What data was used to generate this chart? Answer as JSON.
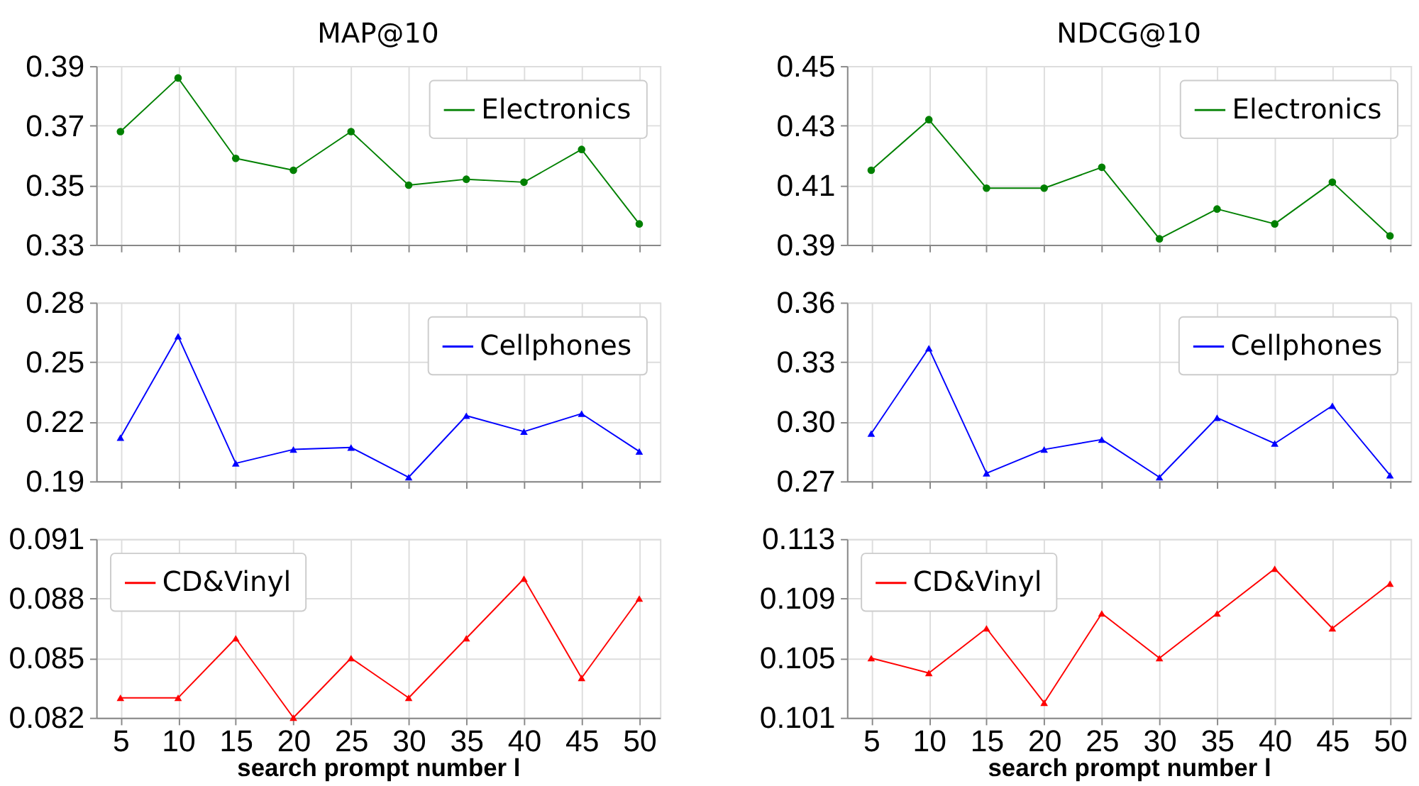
{
  "chart_data": [
    {
      "type": "line",
      "title": "MAP@10",
      "x": [
        5,
        10,
        15,
        20,
        25,
        30,
        35,
        40,
        45,
        50
      ],
      "xlim": [
        2.9,
        51.8
      ],
      "xticks": [
        5,
        10,
        15,
        20,
        25,
        30,
        35,
        40,
        45,
        50
      ],
      "ylim": [
        0.33,
        0.39
      ],
      "yticks": [
        0.33,
        0.35,
        0.37,
        0.39
      ],
      "grid": true,
      "legend": "top right",
      "marker": "circle",
      "tick_labels": "y",
      "series": [
        {
          "name": "Electronics",
          "color": "#008000",
          "values": [
            0.368,
            0.386,
            0.359,
            0.355,
            0.368,
            0.35,
            0.352,
            0.351,
            0.362,
            0.337
          ]
        }
      ]
    },
    {
      "type": "line",
      "title": "NDCG@10",
      "x": [
        5,
        10,
        15,
        20,
        25,
        30,
        35,
        40,
        45,
        50
      ],
      "xlim": [
        2.9,
        51.8
      ],
      "xticks": [
        5,
        10,
        15,
        20,
        25,
        30,
        35,
        40,
        45,
        50
      ],
      "ylim": [
        0.39,
        0.45
      ],
      "yticks": [
        0.39,
        0.41,
        0.43,
        0.45
      ],
      "grid": true,
      "legend": "top right",
      "marker": "circle",
      "tick_labels": "y",
      "series": [
        {
          "name": "Electronics",
          "color": "#008000",
          "values": [
            0.415,
            0.432,
            0.409,
            0.409,
            0.416,
            0.392,
            0.402,
            0.397,
            0.411,
            0.393
          ]
        }
      ]
    },
    {
      "type": "line",
      "x": [
        5,
        10,
        15,
        20,
        25,
        30,
        35,
        40,
        45,
        50
      ],
      "xlim": [
        2.9,
        51.8
      ],
      "xticks": [
        5,
        10,
        15,
        20,
        25,
        30,
        35,
        40,
        45,
        50
      ],
      "ylim": [
        0.19,
        0.28
      ],
      "yticks": [
        0.19,
        0.22,
        0.25,
        0.28
      ],
      "grid": true,
      "legend": "top right",
      "marker": "triangle",
      "tick_labels": "y",
      "series": [
        {
          "name": "Cellphones",
          "color": "#0000ff",
          "values": [
            0.212,
            0.263,
            0.199,
            0.206,
            0.207,
            0.192,
            0.223,
            0.215,
            0.224,
            0.205
          ]
        }
      ]
    },
    {
      "type": "line",
      "x": [
        5,
        10,
        15,
        20,
        25,
        30,
        35,
        40,
        45,
        50
      ],
      "xlim": [
        2.9,
        51.8
      ],
      "xticks": [
        5,
        10,
        15,
        20,
        25,
        30,
        35,
        40,
        45,
        50
      ],
      "ylim": [
        0.27,
        0.36
      ],
      "yticks": [
        0.27,
        {
          "value": 0.3,
          "label": "0.30"
        },
        0.33,
        0.36
      ],
      "grid": true,
      "legend": "top right",
      "marker": "triangle",
      "tick_labels": "y",
      "series": [
        {
          "name": "Cellphones",
          "color": "#0000ff",
          "values": [
            0.294,
            0.337,
            0.274,
            0.286,
            0.291,
            0.272,
            0.302,
            0.289,
            0.308,
            0.273
          ]
        }
      ]
    },
    {
      "type": "line",
      "xlabel": "search prompt number l",
      "x": [
        5,
        10,
        15,
        20,
        25,
        30,
        35,
        40,
        45,
        50
      ],
      "xlim": [
        2.9,
        51.8
      ],
      "xticks": [
        5,
        10,
        15,
        20,
        25,
        30,
        35,
        40,
        45,
        50
      ],
      "ylim": [
        0.082,
        0.091
      ],
      "yticks": [
        0.082,
        0.085,
        0.088,
        0.091
      ],
      "grid": true,
      "legend": "top left",
      "marker": "triangle",
      "series": [
        {
          "name": "CD&Vinyl",
          "color": "#ff0000",
          "values": [
            0.083,
            0.083,
            0.086,
            0.082,
            0.085,
            0.083,
            0.086,
            0.089,
            0.084,
            0.088
          ]
        }
      ]
    },
    {
      "type": "line",
      "xlabel": "search prompt number l",
      "x": [
        5,
        10,
        15,
        20,
        25,
        30,
        35,
        40,
        45,
        50
      ],
      "xlim": [
        2.9,
        51.8
      ],
      "xticks": [
        5,
        10,
        15,
        20,
        25,
        30,
        35,
        40,
        45,
        50
      ],
      "ylim": [
        0.101,
        0.113
      ],
      "yticks": [
        0.101,
        0.105,
        0.109,
        0.113
      ],
      "grid": true,
      "legend": "top left",
      "marker": "triangle",
      "series": [
        {
          "name": "CD&Vinyl",
          "color": "#ff0000",
          "values": [
            0.105,
            0.104,
            0.107,
            0.102,
            0.108,
            0.105,
            0.108,
            0.111,
            0.107,
            0.11
          ]
        }
      ]
    }
  ]
}
